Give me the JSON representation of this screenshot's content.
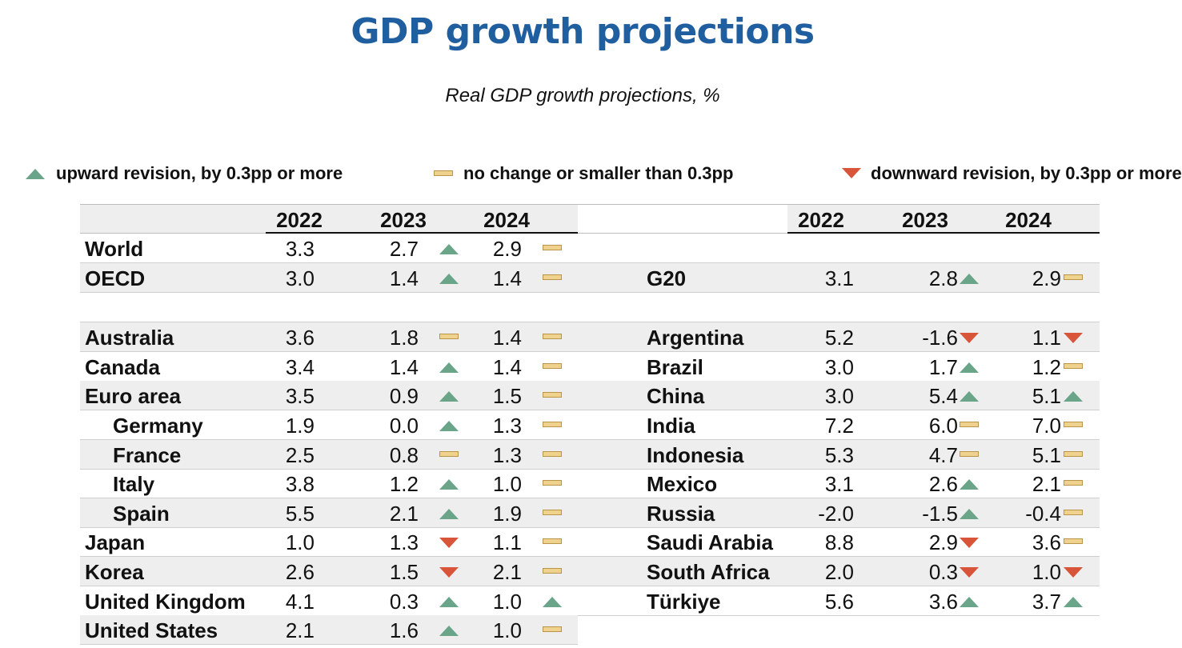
{
  "title": "GDP growth projections",
  "subtitle": "Real GDP growth projections, %",
  "legend": {
    "up": "upward revision, by 0.3pp or more",
    "flat": "no change or smaller than 0.3pp",
    "down": "downward revision, by 0.3pp or more"
  },
  "colors": {
    "title": "#1f5fa0",
    "up": "#6aa58a",
    "flat": "#efd28e",
    "down": "#d8553a",
    "shade": "#eeeeee"
  },
  "chart_data": {
    "type": "table",
    "columns": [
      "2022",
      "2023",
      "2024"
    ],
    "marker_key": {
      "up": "upward revision",
      "flat": "no change",
      "down": "downward revision"
    },
    "left": [
      {
        "name": "World",
        "v2022": "3.3",
        "v2023": "2.7",
        "m2023": "up",
        "v2024": "2.9",
        "m2024": "flat",
        "shade": false,
        "indent": false
      },
      {
        "name": "OECD",
        "v2022": "3.0",
        "v2023": "1.4",
        "m2023": "up",
        "v2024": "1.4",
        "m2024": "flat",
        "shade": true,
        "indent": false
      },
      {
        "name": "Australia",
        "v2022": "3.6",
        "v2023": "1.8",
        "m2023": "flat",
        "v2024": "1.4",
        "m2024": "flat",
        "shade": true,
        "indent": false,
        "gap_before": true
      },
      {
        "name": "Canada",
        "v2022": "3.4",
        "v2023": "1.4",
        "m2023": "up",
        "v2024": "1.4",
        "m2024": "flat",
        "shade": false,
        "indent": false
      },
      {
        "name": "Euro area",
        "v2022": "3.5",
        "v2023": "0.9",
        "m2023": "up",
        "v2024": "1.5",
        "m2024": "flat",
        "shade": true,
        "indent": false
      },
      {
        "name": "Germany",
        "v2022": "1.9",
        "v2023": "0.0",
        "m2023": "up",
        "v2024": "1.3",
        "m2024": "flat",
        "shade": false,
        "indent": true
      },
      {
        "name": "France",
        "v2022": "2.5",
        "v2023": "0.8",
        "m2023": "flat",
        "v2024": "1.3",
        "m2024": "flat",
        "shade": true,
        "indent": true
      },
      {
        "name": "Italy",
        "v2022": "3.8",
        "v2023": "1.2",
        "m2023": "up",
        "v2024": "1.0",
        "m2024": "flat",
        "shade": false,
        "indent": true
      },
      {
        "name": "Spain",
        "v2022": "5.5",
        "v2023": "2.1",
        "m2023": "up",
        "v2024": "1.9",
        "m2024": "flat",
        "shade": true,
        "indent": true
      },
      {
        "name": "Japan",
        "v2022": "1.0",
        "v2023": "1.3",
        "m2023": "down",
        "v2024": "1.1",
        "m2024": "flat",
        "shade": false,
        "indent": false
      },
      {
        "name": "Korea",
        "v2022": "2.6",
        "v2023": "1.5",
        "m2023": "down",
        "v2024": "2.1",
        "m2024": "flat",
        "shade": true,
        "indent": false
      },
      {
        "name": "United Kingdom",
        "v2022": "4.1",
        "v2023": "0.3",
        "m2023": "up",
        "v2024": "1.0",
        "m2024": "up",
        "shade": false,
        "indent": false
      },
      {
        "name": "United States",
        "v2022": "2.1",
        "v2023": "1.6",
        "m2023": "up",
        "v2024": "1.0",
        "m2024": "flat",
        "shade": true,
        "indent": false
      }
    ],
    "right": [
      {
        "name": "G20",
        "v2022": "3.1",
        "v2023": "2.8",
        "m2023": "up",
        "v2024": "2.9",
        "m2024": "flat",
        "shade": true,
        "row": 1
      },
      {
        "name": "Argentina",
        "v2022": "5.2",
        "v2023": "-1.6",
        "m2023": "down",
        "v2024": "1.1",
        "m2024": "down",
        "shade": true,
        "row": 2
      },
      {
        "name": "Brazil",
        "v2022": "3.0",
        "v2023": "1.7",
        "m2023": "up",
        "v2024": "1.2",
        "m2024": "flat",
        "shade": false,
        "row": 3
      },
      {
        "name": "China",
        "v2022": "3.0",
        "v2023": "5.4",
        "m2023": "up",
        "v2024": "5.1",
        "m2024": "up",
        "shade": true,
        "row": 4
      },
      {
        "name": "India",
        "v2022": "7.2",
        "v2023": "6.0",
        "m2023": "flat",
        "v2024": "7.0",
        "m2024": "flat",
        "shade": false,
        "row": 5
      },
      {
        "name": "Indonesia",
        "v2022": "5.3",
        "v2023": "4.7",
        "m2023": "flat",
        "v2024": "5.1",
        "m2024": "flat",
        "shade": true,
        "row": 6
      },
      {
        "name": "Mexico",
        "v2022": "3.1",
        "v2023": "2.6",
        "m2023": "up",
        "v2024": "2.1",
        "m2024": "flat",
        "shade": false,
        "row": 7
      },
      {
        "name": "Russia",
        "v2022": "-2.0",
        "v2023": "-1.5",
        "m2023": "up",
        "v2024": "-0.4",
        "m2024": "flat",
        "shade": true,
        "row": 8
      },
      {
        "name": "Saudi Arabia",
        "v2022": "8.8",
        "v2023": "2.9",
        "m2023": "down",
        "v2024": "3.6",
        "m2024": "flat",
        "shade": false,
        "row": 9
      },
      {
        "name": "South Africa",
        "v2022": "2.0",
        "v2023": "0.3",
        "m2023": "down",
        "v2024": "1.0",
        "m2024": "down",
        "shade": true,
        "row": 10
      },
      {
        "name": "Türkiye",
        "v2022": "5.6",
        "v2023": "3.6",
        "m2023": "up",
        "v2024": "3.7",
        "m2024": "up",
        "shade": false,
        "row": 11
      }
    ]
  }
}
